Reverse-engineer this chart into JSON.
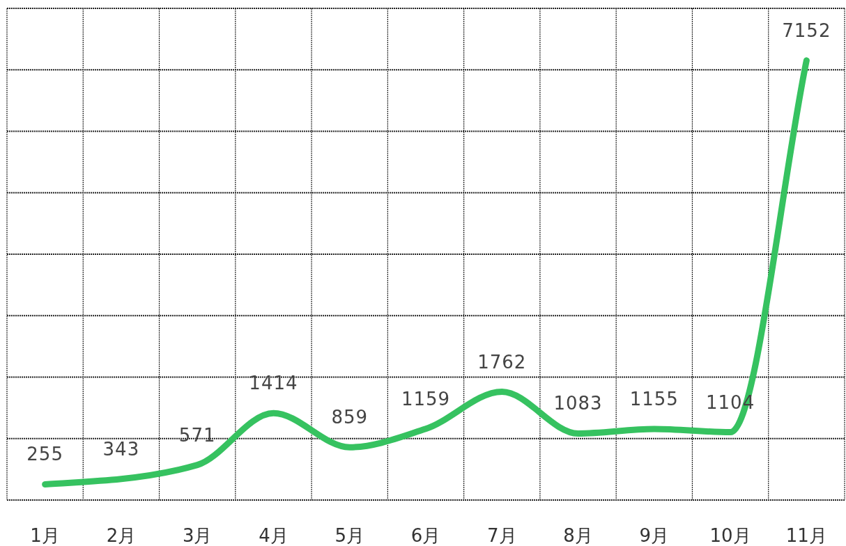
{
  "chart_data": {
    "type": "line",
    "categories": [
      "1月",
      "2月",
      "3月",
      "4月",
      "5月",
      "6月",
      "7月",
      "8月",
      "9月",
      "10月",
      "11月"
    ],
    "series": [
      {
        "color": "#36c260",
        "values": [
          255,
          343,
          571,
          1414,
          859,
          1159,
          1762,
          1083,
          1155,
          1104,
          7152
        ]
      }
    ],
    "data_labels": true,
    "ylim": [
      0,
      8000
    ],
    "yticks": [
      {
        "value": 0,
        "label": null
      },
      {
        "value": 1000,
        "label": null
      },
      {
        "value": 2000,
        "label": null
      },
      {
        "value": 3000,
        "label": null
      },
      {
        "value": 4000,
        "label": null
      },
      {
        "value": 5000,
        "label": null
      },
      {
        "value": 6000,
        "label": null
      },
      {
        "value": 7000,
        "label": null
      },
      {
        "value": 8000,
        "label": null
      }
    ],
    "tick_labels": "x",
    "grid": true,
    "line_style": "solid"
  }
}
